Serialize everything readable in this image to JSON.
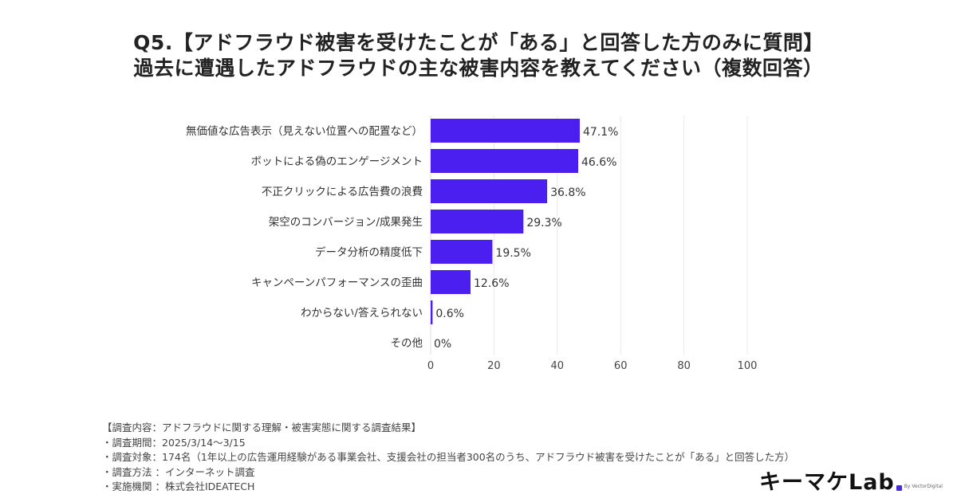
{
  "title_line1": "Q5.【アドフラウド被害を受けたことが「ある」と回答した方のみに質問】",
  "title_line2": "過去に遭遇したアドフラウドの主な被害内容を教えてください（複数回答）",
  "chart_data": {
    "type": "bar",
    "orientation": "horizontal",
    "categories": [
      "無価値な広告表示（見えない位置への配置など）",
      "ボットによる偽のエンゲージメント",
      "不正クリックによる広告費の浪費",
      "架空のコンバージョン/成果発生",
      "データ分析の精度低下",
      "キャンペーンパフォーマンスの歪曲",
      "わからない/答えられない",
      "その他"
    ],
    "values": [
      47.1,
      46.6,
      36.8,
      29.3,
      19.5,
      12.6,
      0.6,
      0
    ],
    "value_labels": [
      "47.1%",
      "46.6%",
      "36.8%",
      "29.3%",
      "19.5%",
      "12.6%",
      "0.6%",
      "0%"
    ],
    "x_ticks": [
      "0",
      "20",
      "40",
      "60",
      "80",
      "100"
    ],
    "xlim": [
      0,
      100
    ],
    "grid": true,
    "bar_color": "#4a1ff0",
    "grid_color": "#e9e9e9"
  },
  "notes": [
    "【調査内容：アドフラウドに関する理解・被害実態に関する調査結果】",
    "・調査期間：2025/3/14〜3/15",
    "・調査対象：174名（1年以上の広告運用経験がある事業会社、支援会社の担当者300名のうち、アドフラウド被害を受けたことが「ある」と回答した方）",
    "・調査方法 ：インターネット調査",
    "・実施機関 ：株式会社IDEATECH"
  ],
  "logo": {
    "main": "キーマケLab",
    "sub": "By VectorDigital"
  }
}
